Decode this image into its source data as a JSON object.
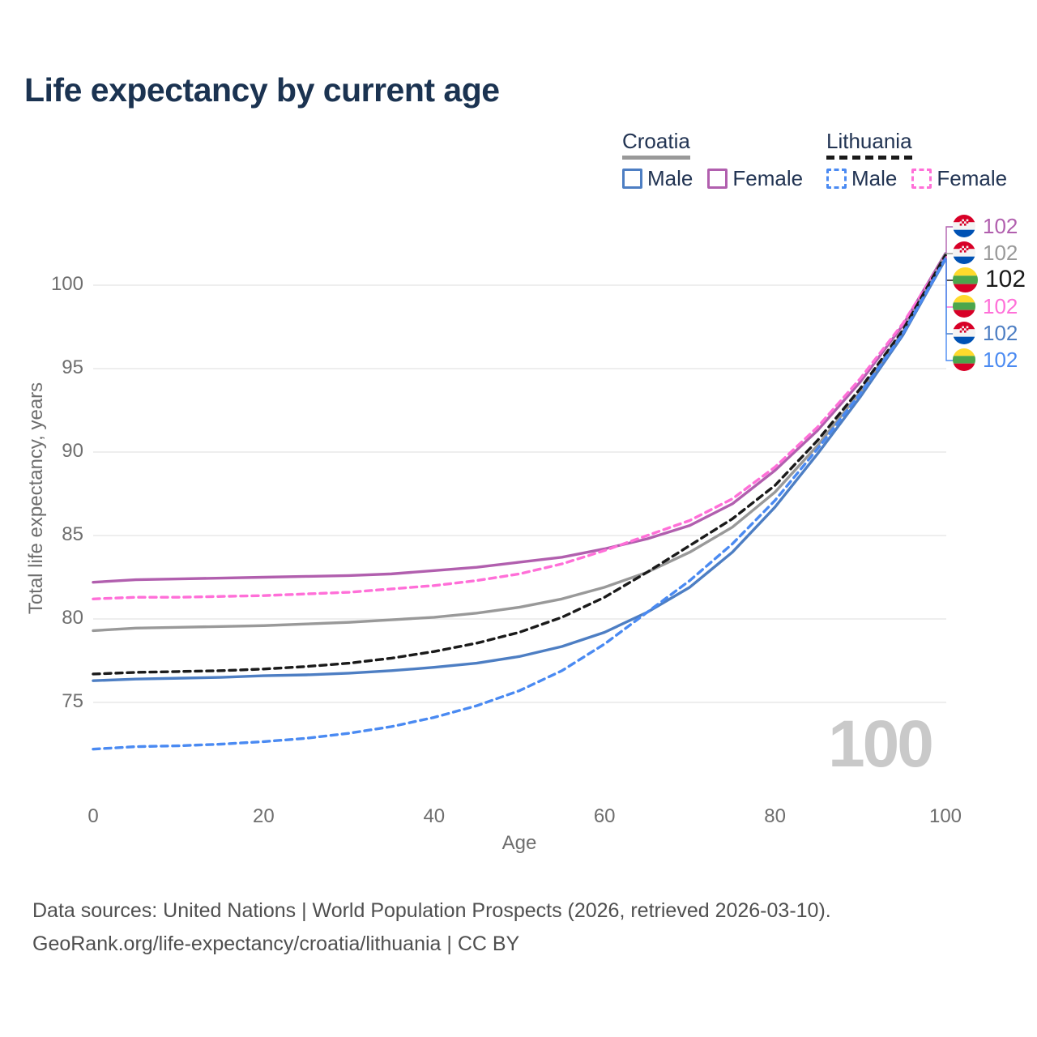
{
  "title": "Life expectancy by current age",
  "legend": {
    "groups": [
      {
        "country": "Croatia",
        "line_style": "solid",
        "line_color": "#999999",
        "items": [
          {
            "label": "Male",
            "color": "#4d7ec3",
            "dash": false
          },
          {
            "label": "Female",
            "color": "#b15fae",
            "dash": false
          }
        ]
      },
      {
        "country": "Lithuania",
        "line_style": "dashed",
        "line_color": "#1a1a1a",
        "items": [
          {
            "label": "Male",
            "color": "#4a8af2",
            "dash": true
          },
          {
            "label": "Female",
            "color": "#ff6fd8",
            "dash": true
          }
        ]
      }
    ]
  },
  "chart_data": {
    "type": "line",
    "title": "Life expectancy by current age",
    "xlabel": "Age",
    "ylabel": "Total life expectancy, years",
    "xlim": [
      0,
      100
    ],
    "ylim": [
      71,
      103
    ],
    "xticks": [
      0,
      20,
      40,
      60,
      80,
      100
    ],
    "yticks": [
      75,
      80,
      85,
      90,
      95,
      100
    ],
    "grid": true,
    "legend_position": "top-right",
    "x": [
      0,
      5,
      10,
      15,
      20,
      25,
      30,
      35,
      40,
      45,
      50,
      55,
      60,
      65,
      70,
      75,
      80,
      85,
      90,
      95,
      100
    ],
    "series": [
      {
        "name": "Croatia Female",
        "country": "Croatia",
        "sex": "Female",
        "style": "solid",
        "color": "#b15fae",
        "values": [
          82.2,
          82.35,
          82.4,
          82.45,
          82.5,
          82.55,
          82.6,
          82.7,
          82.9,
          83.1,
          83.4,
          83.7,
          84.2,
          84.8,
          85.6,
          86.9,
          88.9,
          91.3,
          94.2,
          97.6,
          101.9
        ]
      },
      {
        "name": "Croatia Total",
        "country": "Croatia",
        "sex": "Both",
        "style": "solid",
        "color": "#999999",
        "values": [
          79.3,
          79.45,
          79.5,
          79.55,
          79.6,
          79.7,
          79.8,
          79.95,
          80.1,
          80.35,
          80.7,
          81.2,
          81.9,
          82.8,
          84.0,
          85.5,
          87.6,
          90.4,
          93.6,
          97.2,
          101.85
        ]
      },
      {
        "name": "Croatia Male",
        "country": "Croatia",
        "sex": "Male",
        "style": "solid",
        "color": "#4d7ec3",
        "values": [
          76.3,
          76.4,
          76.45,
          76.5,
          76.6,
          76.65,
          76.75,
          76.9,
          77.1,
          77.35,
          77.75,
          78.35,
          79.2,
          80.4,
          81.9,
          84.0,
          86.7,
          89.9,
          93.3,
          97.0,
          101.55
        ]
      },
      {
        "name": "Lithuania Female",
        "country": "Lithuania",
        "sex": "Female",
        "style": "dashed",
        "color": "#ff6fd8",
        "values": [
          81.2,
          81.3,
          81.3,
          81.35,
          81.4,
          81.5,
          81.6,
          81.8,
          82.0,
          82.3,
          82.7,
          83.3,
          84.1,
          85.0,
          85.9,
          87.2,
          89.1,
          91.5,
          94.4,
          97.7,
          101.75
        ]
      },
      {
        "name": "Lithuania Total",
        "country": "Lithuania",
        "sex": "Both",
        "style": "dashed",
        "color": "#1a1a1a",
        "values": [
          76.7,
          76.8,
          76.85,
          76.9,
          77.0,
          77.15,
          77.35,
          77.65,
          78.05,
          78.55,
          79.2,
          80.1,
          81.3,
          82.8,
          84.4,
          86.0,
          88.0,
          90.7,
          93.8,
          97.3,
          101.8
        ]
      },
      {
        "name": "Lithuania Male",
        "country": "Lithuania",
        "sex": "Male",
        "style": "dashed",
        "color": "#4a8af2",
        "values": [
          72.2,
          72.35,
          72.4,
          72.5,
          72.65,
          72.85,
          73.15,
          73.55,
          74.1,
          74.8,
          75.7,
          76.9,
          78.5,
          80.4,
          82.3,
          84.5,
          87.1,
          90.2,
          93.5,
          97.1,
          101.6
        ]
      }
    ]
  },
  "end_labels": [
    {
      "value": "102",
      "series": "Croatia Female",
      "flag": "croatia",
      "color": "#b15fae",
      "emphasis": false
    },
    {
      "value": "102",
      "series": "Croatia Total",
      "flag": "croatia",
      "color": "#999999",
      "emphasis": false
    },
    {
      "value": "102",
      "series": "Lithuania Total",
      "flag": "lithuania",
      "color": "#1a1a1a",
      "emphasis": true
    },
    {
      "value": "102",
      "series": "Lithuania Female",
      "flag": "lithuania",
      "color": "#ff6fd8",
      "emphasis": false
    },
    {
      "value": "102",
      "series": "Croatia Male",
      "flag": "croatia",
      "color": "#4d7ec3",
      "emphasis": false
    },
    {
      "value": "102",
      "series": "Lithuania Male",
      "flag": "lithuania",
      "color": "#4a8af2",
      "emphasis": false
    }
  ],
  "watermark": "100",
  "footer": {
    "line1": "Data sources: United Nations | World Population Prospects (2026, retrieved 2026-03-10).",
    "line2": "GeoRank.org/life-expectancy/croatia/lithuania | CC BY"
  }
}
